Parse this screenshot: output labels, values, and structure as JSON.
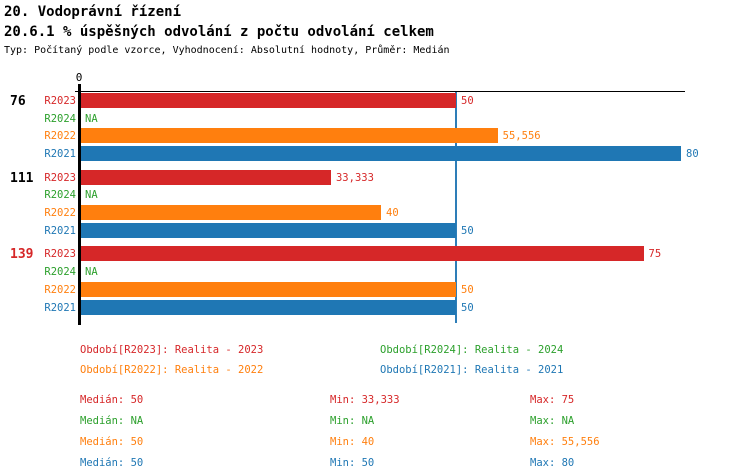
{
  "header": {
    "title": "20. Vodoprávní řízení",
    "subtitle": "20.6.1 % úspěšných odvolání z počtu odvolání celkem",
    "meta": "Typ: Počítaný podle vzorce, Vyhodnocení: Absolutní hodnoty, Průměr: Medián"
  },
  "colors": {
    "R2023": "#d62728",
    "R2024": "#2ca02c",
    "R2022": "#ff7f0e",
    "R2021": "#1f77b4",
    "axis": "#000000",
    "median_line": "#2e7eb8",
    "group_label_default": "#000000",
    "group_label_highlight": "#d62728"
  },
  "chart_data": {
    "type": "bar",
    "orientation": "horizontal",
    "title": "20.6.1 % úspěšných odvolání z počtu odvolání celkem",
    "xlabel": "",
    "ylabel": "",
    "xlim": [
      0,
      80.5
    ],
    "grid": false,
    "zero_tick_label": "0",
    "median_reference_value": 50,
    "na_text": "NA",
    "series_order": [
      "R2023",
      "R2024",
      "R2022",
      "R2021"
    ],
    "groups": [
      {
        "label": "76",
        "label_color": "#000000",
        "bars": [
          {
            "series": "R2023",
            "value": 50,
            "display": "50"
          },
          {
            "series": "R2024",
            "value": null,
            "display": "NA"
          },
          {
            "series": "R2022",
            "value": 55.556,
            "display": "55,556"
          },
          {
            "series": "R2021",
            "value": 80,
            "display": "80"
          }
        ]
      },
      {
        "label": "111",
        "label_color": "#000000",
        "bars": [
          {
            "series": "R2023",
            "value": 33.333,
            "display": "33,333"
          },
          {
            "series": "R2024",
            "value": null,
            "display": "NA"
          },
          {
            "series": "R2022",
            "value": 40,
            "display": "40"
          },
          {
            "series": "R2021",
            "value": 50,
            "display": "50"
          }
        ]
      },
      {
        "label": "139",
        "label_color": "#d62728",
        "bars": [
          {
            "series": "R2023",
            "value": 75,
            "display": "75"
          },
          {
            "series": "R2024",
            "value": null,
            "display": "NA"
          },
          {
            "series": "R2022",
            "value": 50,
            "display": "50"
          },
          {
            "series": "R2021",
            "value": 50,
            "display": "50"
          }
        ]
      }
    ]
  },
  "legend": [
    {
      "label": "Období[R2023]: Realita - 2023",
      "color": "#d62728"
    },
    {
      "label": "Období[R2024]: Realita - 2024",
      "color": "#2ca02c"
    },
    {
      "label": "Období[R2022]: Realita - 2022",
      "color": "#ff7f0e"
    },
    {
      "label": "Období[R2021]: Realita - 2021",
      "color": "#1f77b4"
    }
  ],
  "stats": [
    {
      "color": "#d62728",
      "median": "Medián: 50",
      "min": "Min: 33,333",
      "max": "Max: 75"
    },
    {
      "color": "#2ca02c",
      "median": "Medián: NA",
      "min": "Min: NA",
      "max": "Max: NA"
    },
    {
      "color": "#ff7f0e",
      "median": "Medián: 50",
      "min": "Min: 40",
      "max": "Max: 55,556"
    },
    {
      "color": "#1f77b4",
      "median": "Medián: 50",
      "min": "Min: 50",
      "max": "Max: 80"
    }
  ]
}
